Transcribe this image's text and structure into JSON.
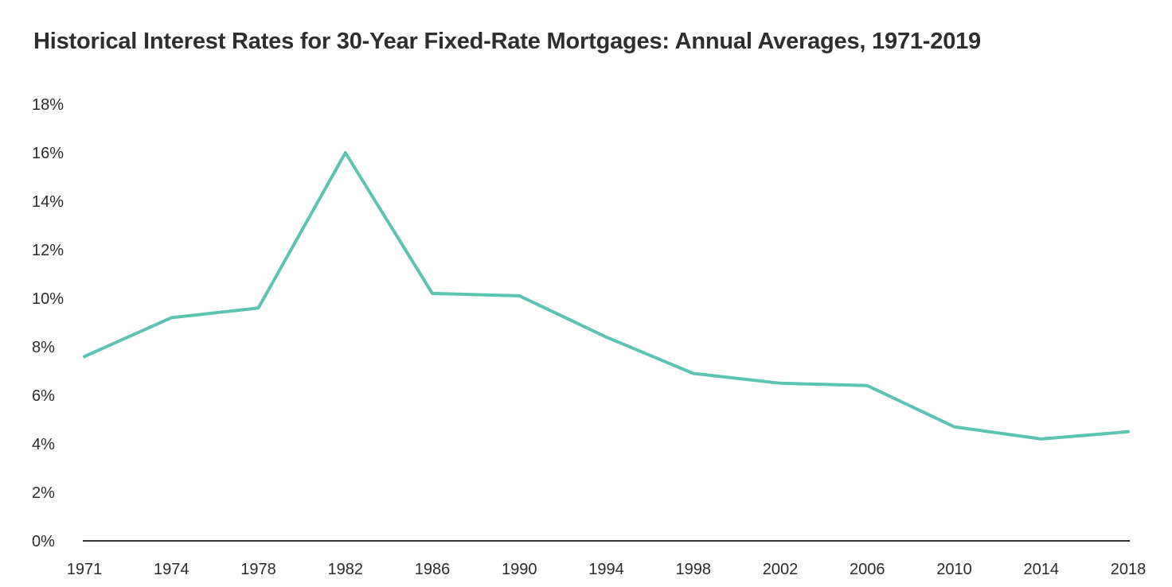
{
  "chart_data": {
    "type": "line",
    "title": "Historical Interest Rates for 30-Year Fixed-Rate Mortgages: Annual Averages, 1971-2019",
    "xlabel": "",
    "ylabel": "",
    "x": [
      "1971",
      "1974",
      "1978",
      "1982",
      "1986",
      "1990",
      "1994",
      "1998",
      "2002",
      "2006",
      "2010",
      "2014",
      "2018"
    ],
    "series": [
      {
        "values": [
          7.6,
          9.2,
          9.6,
          16.0,
          10.2,
          10.1,
          8.4,
          6.9,
          6.5,
          6.4,
          4.7,
          4.2,
          4.5
        ]
      }
    ],
    "ylim": [
      0,
      18
    ],
    "y_ticks": [
      0,
      2,
      4,
      6,
      8,
      10,
      12,
      14,
      16,
      18
    ],
    "y_tick_labels": [
      "0%",
      "2%",
      "4%",
      "6%",
      "8%",
      "10%",
      "12%",
      "14%",
      "16%",
      "18%"
    ],
    "grid": false,
    "legend": "none",
    "colors": {
      "line": "#5bc4b1",
      "axis": "#333333",
      "text": "#2b2b2b"
    }
  }
}
